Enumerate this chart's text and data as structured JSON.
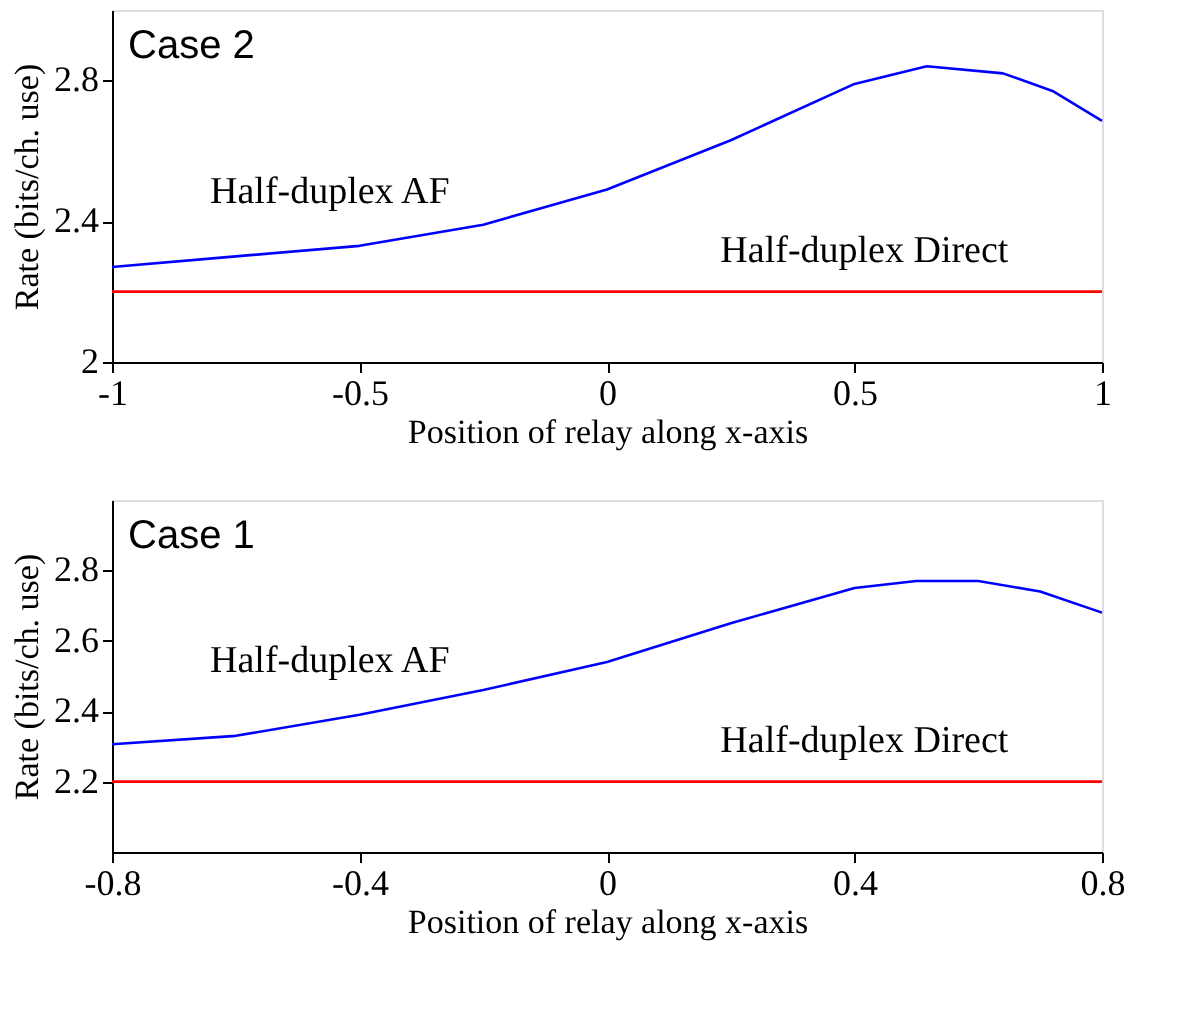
{
  "chart_data": [
    {
      "type": "line",
      "xlabel": "Position of relay along x-axis",
      "ylabel": "Rate (bits/ch. use)",
      "annotations": [
        "Case 2"
      ],
      "xlim": [
        -1,
        1
      ],
      "xticks": [
        -1,
        -0.5,
        0,
        0.5,
        1
      ],
      "ylim": [
        2,
        3
      ],
      "yticks": [
        2,
        2.4,
        2.8
      ],
      "grid": false,
      "legend": false,
      "marker": "none",
      "line_style": "solid",
      "series": [
        {
          "name": "Half-duplex AF",
          "color": "#0000ff",
          "x": [
            -1,
            -0.75,
            -0.5,
            -0.25,
            0,
            0.25,
            0.5,
            0.646,
            0.8,
            0.9,
            1
          ],
          "values": [
            2.27,
            2.3,
            2.33,
            2.39,
            2.49,
            2.63,
            2.79,
            2.84,
            2.82,
            2.77,
            2.685
          ]
        },
        {
          "name": "Half-duplex Direct",
          "color": "#ff0000",
          "x": [
            -1,
            1
          ],
          "values": [
            2.2,
            2.2
          ]
        }
      ]
    },
    {
      "type": "line",
      "xlabel": "Position of relay along x-axis",
      "ylabel": "Rate (bits/ch. use)",
      "annotations": [
        "Case 1"
      ],
      "xlim": [
        -0.8,
        0.8
      ],
      "xticks": [
        -0.8,
        -0.4,
        0,
        0.4,
        0.8
      ],
      "ylim": [
        2,
        3
      ],
      "yticks": [
        2.2,
        2.4,
        2.6,
        2.8
      ],
      "grid": false,
      "legend": false,
      "marker": "none",
      "line_style": "solid",
      "series": [
        {
          "name": "Half-duplex AF",
          "color": "#0000ff",
          "x": [
            -0.8,
            -0.6,
            -0.4,
            -0.2,
            0,
            0.2,
            0.4,
            0.5,
            0.6,
            0.7,
            0.8
          ],
          "values": [
            2.306,
            2.33,
            2.39,
            2.46,
            2.54,
            2.65,
            2.75,
            2.77,
            2.77,
            2.74,
            2.68
          ]
        },
        {
          "name": "Half-duplex Direct",
          "color": "#ff0000",
          "x": [
            -0.8,
            0.8
          ],
          "values": [
            2.2,
            2.2
          ]
        }
      ]
    }
  ]
}
